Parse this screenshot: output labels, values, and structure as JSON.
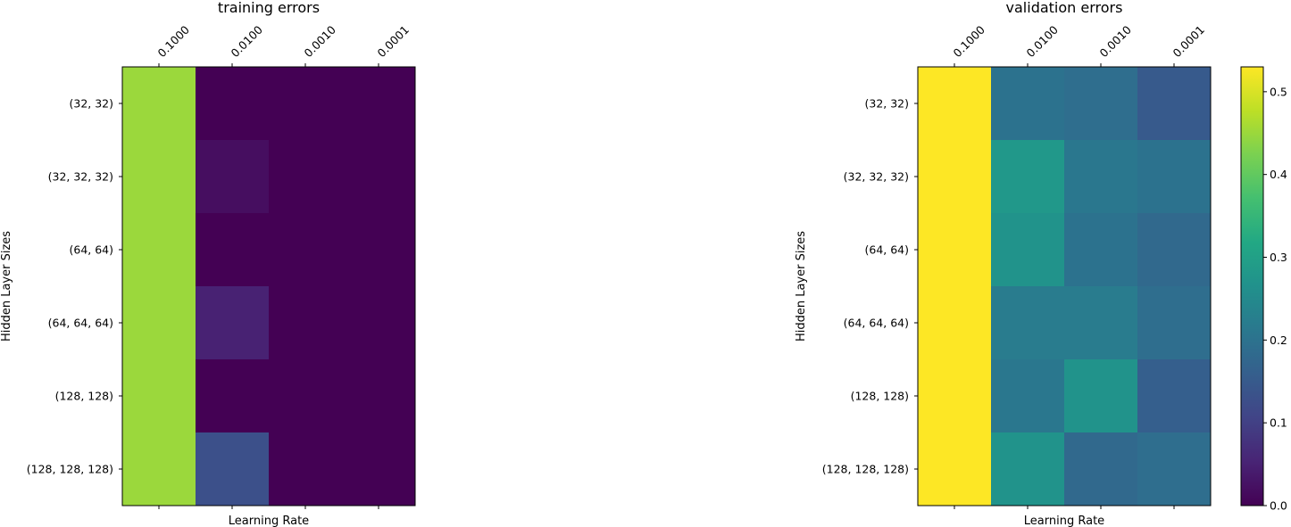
{
  "chart_data": [
    {
      "type": "heatmap",
      "title": "training errors",
      "xlabel": "Learning Rate",
      "ylabel": "Hidden Layer Sizes",
      "x_categories": [
        "0.1000",
        "0.0100",
        "0.0010",
        "0.0001"
      ],
      "y_categories": [
        "(32, 32)",
        "(32, 32, 32)",
        "(64, 64)",
        "(64, 64, 64)",
        "(128, 128)",
        "(128, 128, 128)"
      ],
      "values": [
        [
          0.45,
          0.0,
          0.0,
          0.0
        ],
        [
          0.45,
          0.02,
          0.0,
          0.0
        ],
        [
          0.45,
          0.0,
          0.0,
          0.0
        ],
        [
          0.45,
          0.05,
          0.0,
          0.0
        ],
        [
          0.45,
          0.0,
          0.0,
          0.0
        ],
        [
          0.45,
          0.13,
          0.0,
          0.0
        ]
      ],
      "color_range": [
        0,
        0.53
      ],
      "colormap": "viridis",
      "colorbar": false
    },
    {
      "type": "heatmap",
      "title": "validation errors",
      "xlabel": "Learning Rate",
      "ylabel": "Hidden Layer Sizes",
      "x_categories": [
        "0.1000",
        "0.0100",
        "0.0010",
        "0.0001"
      ],
      "y_categories": [
        "(32, 32)",
        "(32, 32, 32)",
        "(64, 64)",
        "(64, 64, 64)",
        "(128, 128)",
        "(128, 128, 128)"
      ],
      "values": [
        [
          0.53,
          0.2,
          0.19,
          0.15
        ],
        [
          0.53,
          0.28,
          0.21,
          0.2
        ],
        [
          0.53,
          0.27,
          0.2,
          0.18
        ],
        [
          0.53,
          0.22,
          0.22,
          0.19
        ],
        [
          0.53,
          0.21,
          0.27,
          0.16
        ],
        [
          0.53,
          0.27,
          0.18,
          0.19
        ]
      ],
      "color_range": [
        0,
        0.53
      ],
      "colormap": "viridis",
      "colorbar": true,
      "colorbar_ticks": [
        "0.0",
        "0.1",
        "0.2",
        "0.3",
        "0.4",
        "0.5"
      ],
      "colorbar_tick_values": [
        0,
        0.1,
        0.2,
        0.3,
        0.4,
        0.5
      ]
    }
  ]
}
